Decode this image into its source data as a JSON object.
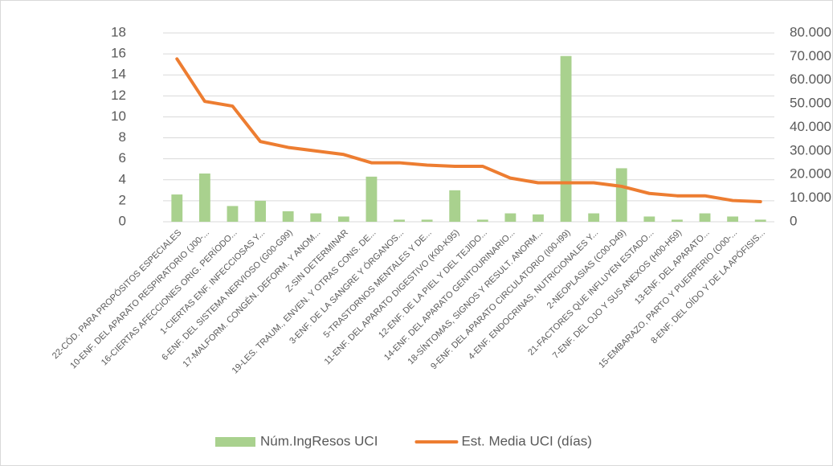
{
  "chart_data": {
    "type": "combo",
    "categories": [
      "22-CÓD. PARA PROPÓSITOS ESPECIALES",
      "10-ENF. DEL APARATO RESPIRATORIO (J00-...",
      "16-CIERTAS AFECCIONES ORIG. PERÍODO...",
      "1-CIERTAS ENF. INFECCIOSAS Y...",
      "6-ENF. DEL SISTEMA NERVIOSO (G00-G99)",
      "17-MALFORM. CONGÉN. DEFORM. Y ANOM...",
      "Z-SIN DETERMINAR",
      "19-LES. TRAUM., ENVEN. Y OTRAS CONS. DE...",
      "3-ENF. DE LA SANGRE Y ÓRGANOS...",
      "5-TRASTORNOS MENTALES Y DE...",
      "11-ENF. DEL APARATO DIGESTIVO (K00-K95)",
      "12-ENF. DE LA PIEL Y DEL TEJIDO...",
      "14-ENF. DEL APARATO GENITOURINARIO...",
      "18-SÍNTOMAS, SIGNOS Y RESULT. ANORM...",
      "9-ENF. DEL APARATO CIRCULATORIO (I00-I99)",
      "4-ENF. ENDOCRINAS, NUTRICIONALES Y...",
      "2-NEOPLASIAS (C00-D49)",
      "21-FACTORES QUE INFLUYEN ESTADO...",
      "7-ENF. DEL OJO Y SUS ANEXOS (H00-H59)",
      "13-ENF. DEL APARATO...",
      "15-EMBARAZO, PARTO Y PUERPERIO (O00-...",
      "8-ENF. DEL OÍDO Y DE LA APÓFISIS..."
    ],
    "series": [
      {
        "name": "Núm.IngResos UCI",
        "type": "bar",
        "color": "#a9d18e",
        "values": [
          2.6,
          4.6,
          1.5,
          2.0,
          1.0,
          0.8,
          0.5,
          4.3,
          0.2,
          0.2,
          3.0,
          0.2,
          0.8,
          0.7,
          15.8,
          0.8,
          5.1,
          0.5,
          0.2,
          0.8,
          0.5,
          0.2
        ]
      },
      {
        "name": "Est. Media UCI (días)",
        "type": "line",
        "axis": "y2",
        "color": "#ed7d31",
        "values": [
          69000,
          51000,
          49000,
          34000,
          31500,
          30000,
          28500,
          25000,
          25000,
          24000,
          23500,
          23500,
          18500,
          16500,
          16500,
          16500,
          15000,
          12000,
          11000,
          11000,
          9000,
          8500
        ]
      }
    ],
    "ylim": [
      0,
      18
    ],
    "yticks": [
      0,
      2,
      4,
      6,
      8,
      10,
      12,
      14,
      16,
      18
    ],
    "y2lim": [
      0,
      80000
    ],
    "y2ticks": [
      0,
      {
        "value": 10000,
        "label": "10.000"
      },
      {
        "value": 20000,
        "label": "20.000"
      },
      {
        "value": 30000,
        "label": "30.000"
      },
      {
        "value": 40000,
        "label": "40.000"
      },
      {
        "value": 50000,
        "label": "50.000"
      },
      {
        "value": 60000,
        "label": "60.000"
      },
      {
        "value": 70000,
        "label": "70.000"
      },
      {
        "value": 80000,
        "label": "80.000"
      }
    ],
    "grid": true,
    "legend": "bottom"
  }
}
